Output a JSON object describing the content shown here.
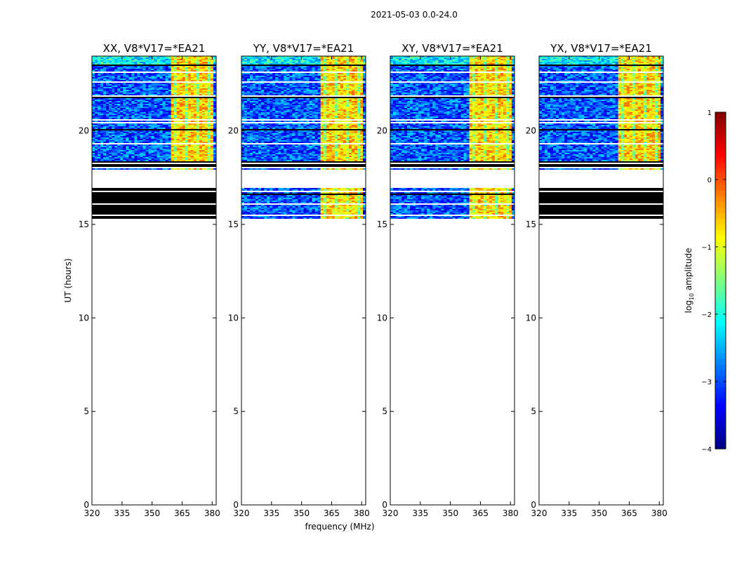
{
  "figure_title": "2021-05-03 0.0-24.0",
  "chart_data": {
    "type": "heatmap",
    "panels": [
      {
        "title": "XX, V8*V17=*EA21",
        "has_mid_band": false
      },
      {
        "title": "YY, V8*V17=*EA21",
        "has_mid_band": true
      },
      {
        "title": "XY, V8*V17=*EA21",
        "has_mid_band": true
      },
      {
        "title": "YX, V8*V17=*EA21",
        "has_mid_band": false
      }
    ],
    "xlabel": "frequency (MHz)",
    "ylabel": "UT (hours)",
    "xlim": [
      320,
      382
    ],
    "ylim": [
      0,
      24
    ],
    "xticks": [
      320,
      335,
      350,
      365,
      380
    ],
    "xtick_labels": [
      "320",
      "335",
      "350",
      "365",
      "380"
    ],
    "yticks": [
      0,
      5,
      10,
      15,
      20
    ],
    "ytick_labels": [
      "0",
      "5",
      "10",
      "15",
      "20"
    ],
    "data_time_range_hours": [
      15.3,
      24.0
    ],
    "flagged_band_hours": [
      18.0,
      18.35
    ],
    "gap_band_hours": [
      17.0,
      17.95
    ],
    "bright_rfi_freq_range_mhz": [
      360,
      380
    ],
    "colorbar": {
      "label_main": "log",
      "label_sub": "10",
      "label_tail": " amplitude",
      "range": [
        -4,
        1
      ],
      "ticks": [
        1,
        0,
        -1,
        -2,
        -3,
        -4
      ],
      "tick_labels": [
        "1",
        "0",
        "−1",
        "−2",
        "−3",
        "−4"
      ],
      "colormap": "jet"
    }
  }
}
